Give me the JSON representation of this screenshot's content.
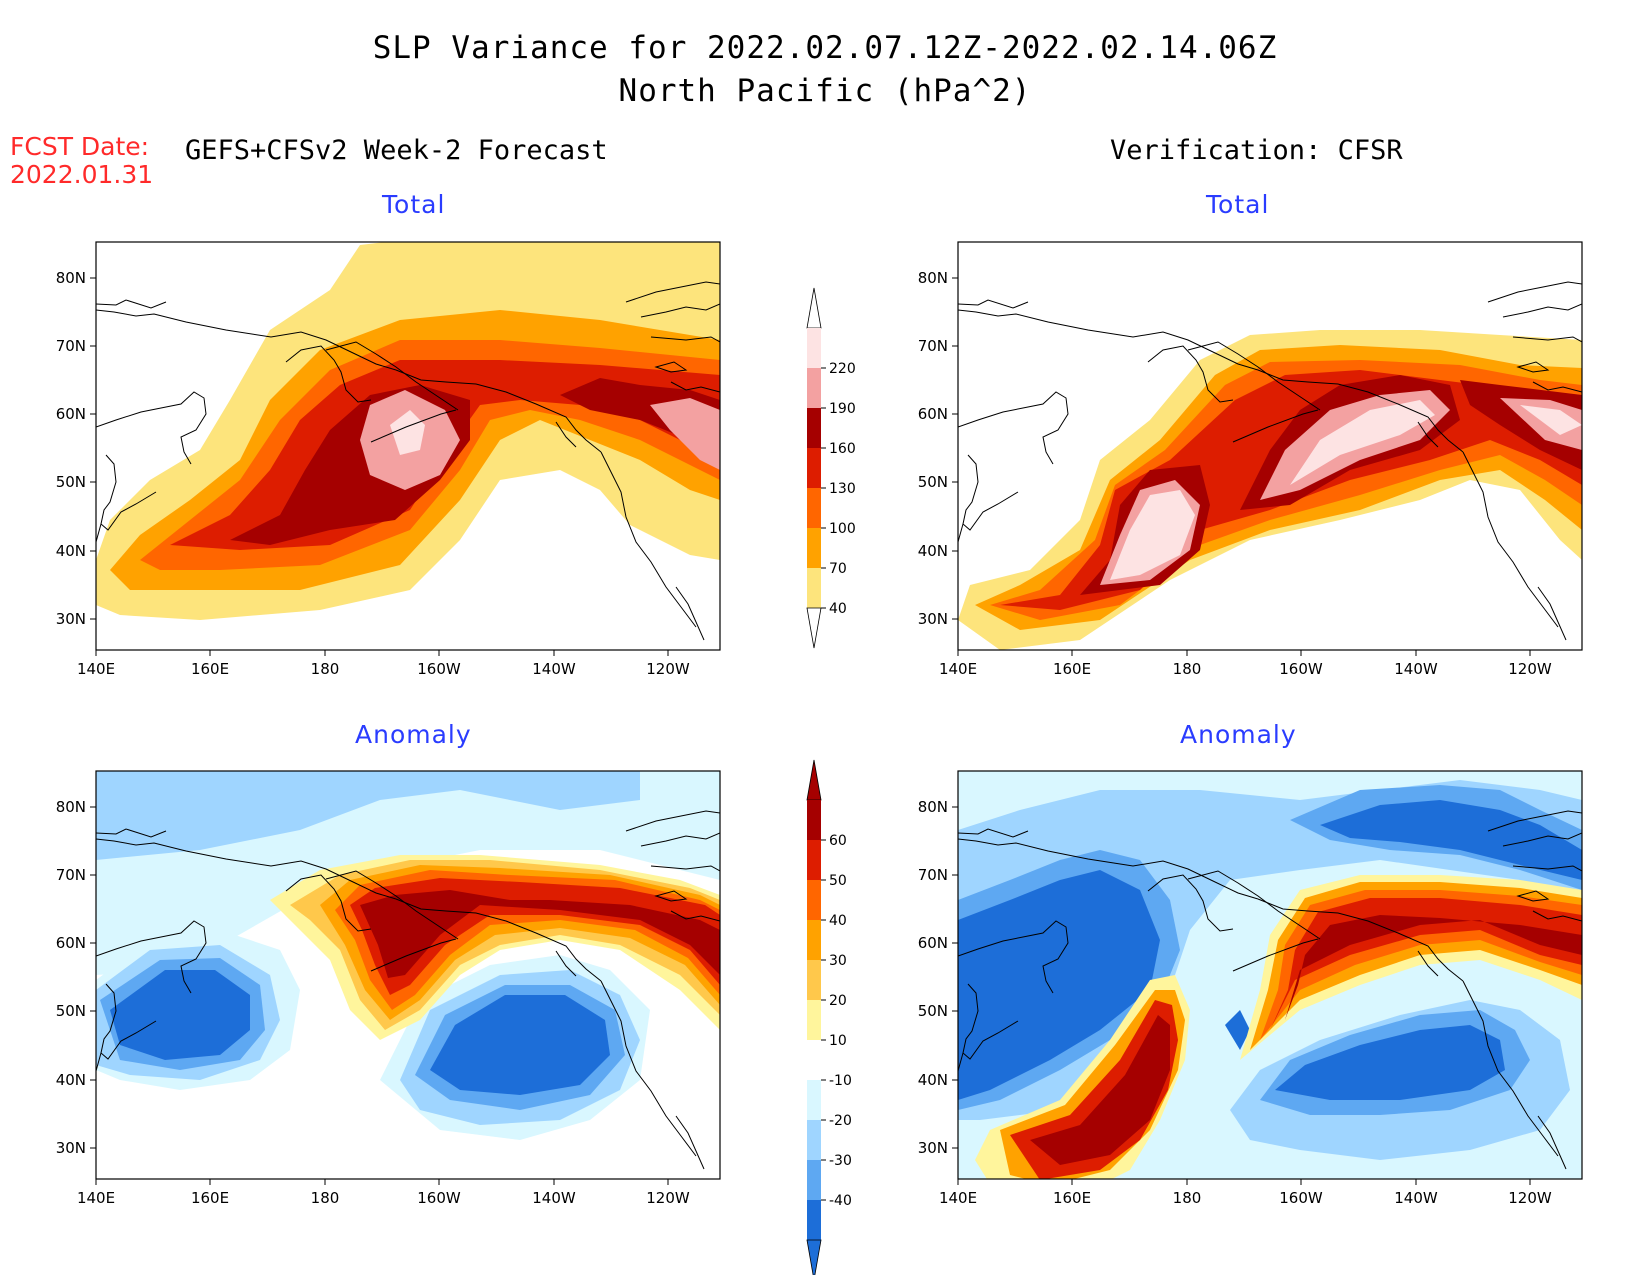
{
  "figure": {
    "title_line1": "SLP Variance for 2022.02.07.12Z-2022.02.14.06Z",
    "title_line2": "North Pacific (hPa^2)",
    "fcst_label": "FCST Date:",
    "fcst_date": "2022.01.31",
    "forecast_header": "GEFS+CFSv2 Week-2 Forecast",
    "verification_header": "Verification: CFSR"
  },
  "panels": [
    {
      "id": "forecast-total",
      "title": "Total"
    },
    {
      "id": "verification-total",
      "title": "Total"
    },
    {
      "id": "forecast-anomaly",
      "title": "Anomaly"
    },
    {
      "id": "verification-anomaly",
      "title": "Anomaly"
    }
  ],
  "axes": {
    "lon_ticks": [
      "140E",
      "160E",
      "180",
      "160W",
      "140W",
      "120W"
    ],
    "lat_ticks": [
      "80N",
      "70N",
      "60N",
      "50N",
      "40N",
      "30N"
    ]
  },
  "colorbars": {
    "total": {
      "levels": [
        "220",
        "190",
        "160",
        "130",
        "100",
        "70",
        "40"
      ],
      "colors": [
        "#fde3e3",
        "#f3a1a1",
        "#a50000",
        "#dd1d00",
        "#ff6600",
        "#ffa200",
        "#fde47c"
      ]
    },
    "anomaly": {
      "levels": [
        "60",
        "50",
        "40",
        "30",
        "20",
        "10",
        "-10",
        "-20",
        "-30",
        "-40"
      ],
      "colors": [
        "#a50000",
        "#dd1d00",
        "#ff6600",
        "#ffa200",
        "#ffc84b",
        "#fff59c",
        "#ffffff",
        "#d9f7ff",
        "#9fd5ff",
        "#5ea8f2",
        "#1d6ed8"
      ]
    }
  }
}
